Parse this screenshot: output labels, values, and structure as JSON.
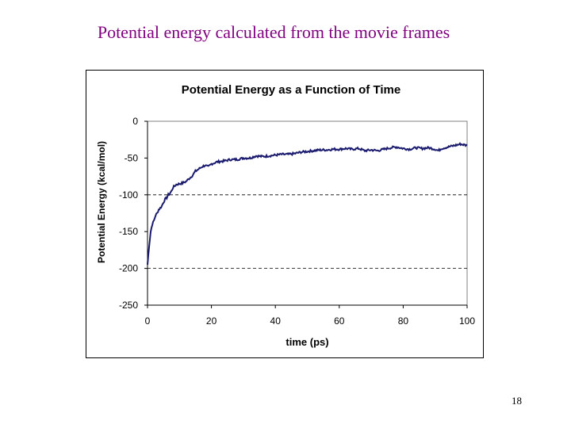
{
  "slide": {
    "title": "Potential energy calculated from the movie frames",
    "page_number": "18"
  },
  "colors": {
    "title_text": "#800080",
    "series_line": "#1a1a6e",
    "gridline": "#000000"
  },
  "chart_data": {
    "type": "line",
    "title": "Potential Energy as a Function of Time",
    "xlabel": "time (ps)",
    "ylabel": "Potential Energy (kcal/mol)",
    "xlim": [
      0,
      100
    ],
    "ylim": [
      -250,
      0
    ],
    "xticks": [
      0,
      20,
      40,
      60,
      80,
      100
    ],
    "yticks": [
      0,
      -50,
      -100,
      -150,
      -200,
      -250
    ],
    "gridlines": {
      "y": [
        -100,
        -200
      ],
      "style": "dashed"
    },
    "legend": "none",
    "series": [
      {
        "x": [
          0,
          0.5,
          1,
          1.5,
          2,
          2.5,
          3,
          3.5,
          4,
          4.5,
          5,
          5.5,
          6,
          6.5,
          7,
          7.5,
          8,
          9,
          10,
          11,
          12,
          13,
          14,
          15,
          16,
          17,
          18,
          19,
          20,
          22,
          24,
          26,
          28,
          30,
          32,
          34,
          36,
          38,
          40,
          42,
          44,
          46,
          48,
          50,
          52,
          54,
          56,
          58,
          60,
          62,
          64,
          66,
          68,
          70,
          72,
          74,
          76,
          78,
          80,
          82,
          84,
          86,
          88,
          90,
          91,
          92,
          94,
          96,
          98,
          100
        ],
        "y": [
          -195,
          -170,
          -150,
          -140,
          -135,
          -128,
          -125,
          -120,
          -118,
          -115,
          -110,
          -106,
          -104,
          -100,
          -98,
          -95,
          -90,
          -86,
          -85,
          -84,
          -82,
          -78,
          -74,
          -68,
          -65,
          -62,
          -60,
          -62,
          -58,
          -55,
          -54,
          -52,
          -52,
          -50,
          -50,
          -47,
          -48,
          -47,
          -46,
          -45,
          -45,
          -44,
          -42,
          -41,
          -40,
          -39,
          -39,
          -38,
          -38,
          -37,
          -38,
          -37,
          -40,
          -39,
          -40,
          -38,
          -36,
          -35,
          -37,
          -38,
          -36,
          -37,
          -36,
          -38,
          -40,
          -37,
          -35,
          -33,
          -31,
          -33
        ]
      }
    ]
  }
}
